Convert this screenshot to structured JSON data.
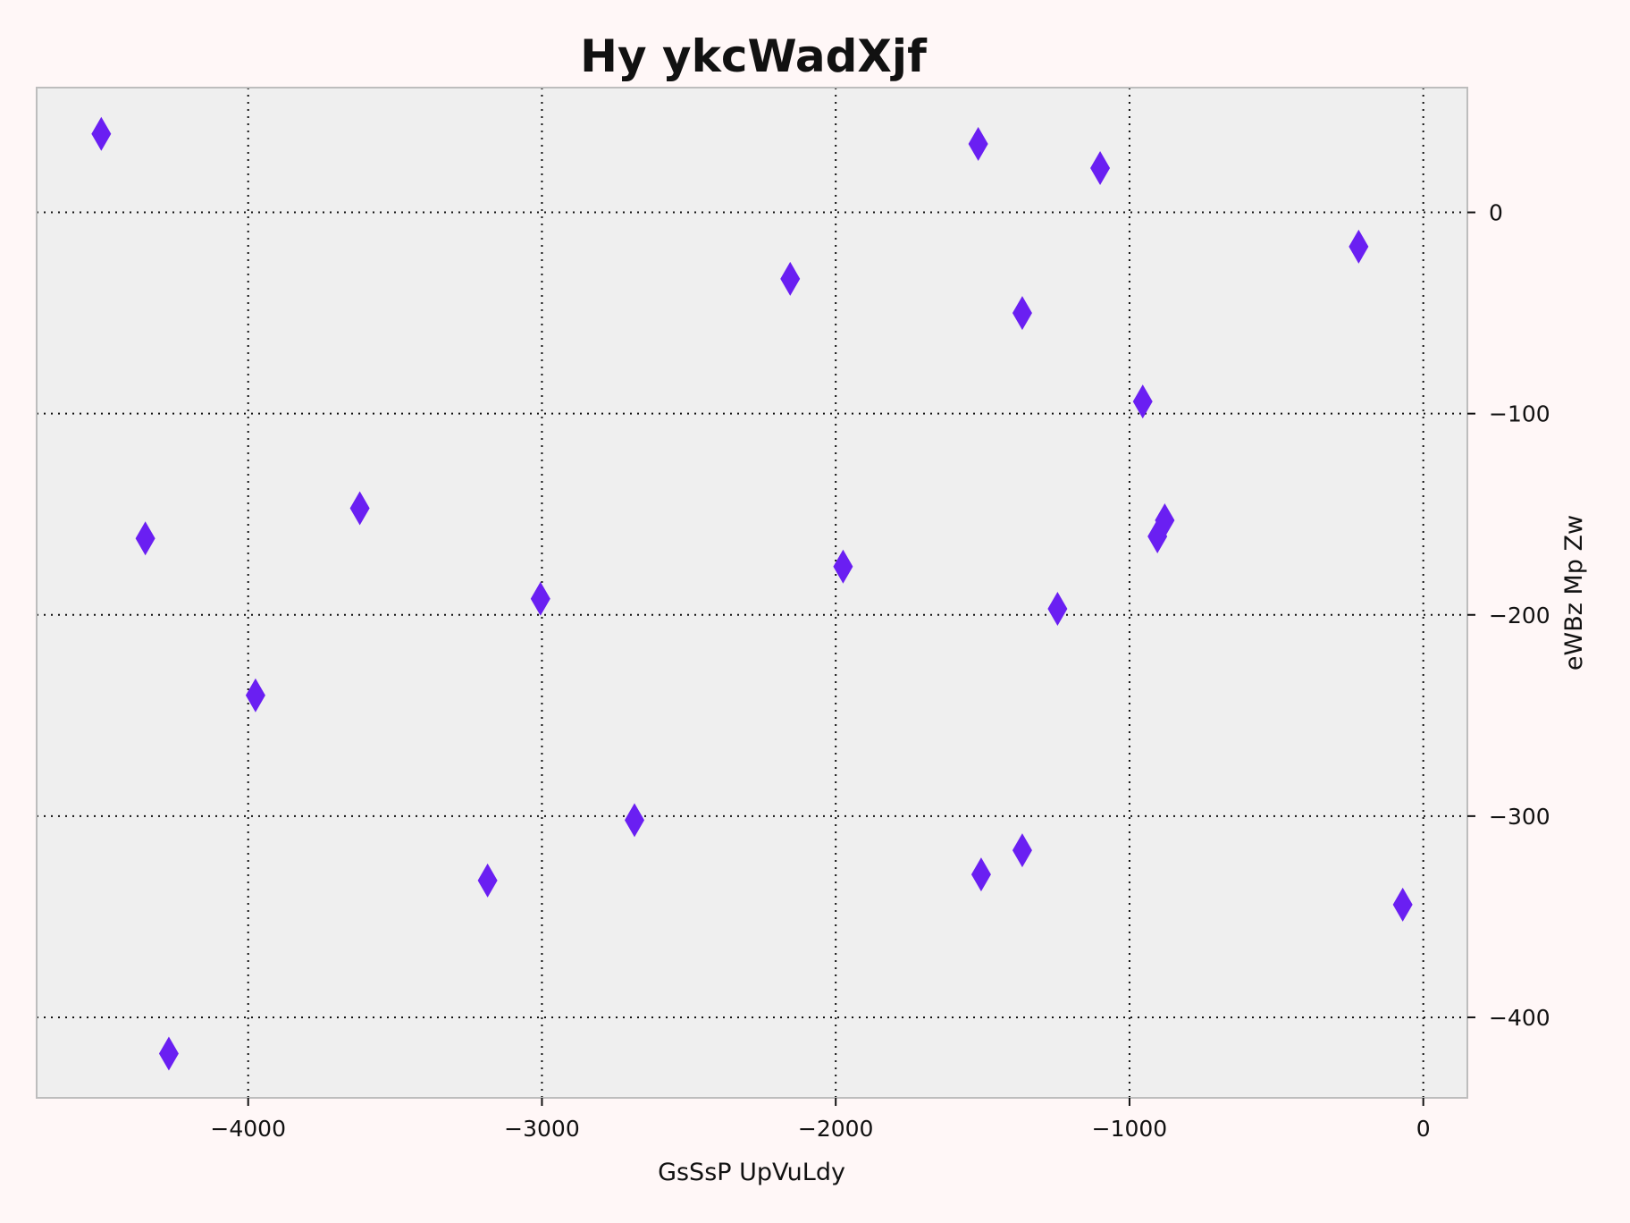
{
  "chart_data": {
    "type": "scatter",
    "title": "Hy ykcWadXjf",
    "xlabel": "GsSsP UpVuLdy",
    "ylabel": "eWBz Mp  Zw",
    "xlim": [
      -4720,
      150
    ],
    "ylim": [
      -440,
      62
    ],
    "xticks": [
      -4000,
      -3000,
      -2000,
      -1000,
      0
    ],
    "xtick_labels": [
      "−4000",
      "−3000",
      "−2000",
      "−1000",
      "0"
    ],
    "yticks": [
      0,
      -100,
      -200,
      -300,
      -400
    ],
    "ytick_labels": [
      "0",
      "−100",
      "−200",
      "−300",
      "−400"
    ],
    "y_axis_position": "right",
    "grid": true,
    "grid_style": "dotted",
    "marker": "diamond",
    "marker_color": "#6a1ff2",
    "plot_background": "#efefef",
    "page_background": "#fff7f7",
    "points": [
      {
        "x": -4500,
        "y": 39
      },
      {
        "x": -4350,
        "y": -162
      },
      {
        "x": -4270,
        "y": -418
      },
      {
        "x": -3975,
        "y": -240
      },
      {
        "x": -3620,
        "y": -147
      },
      {
        "x": -3185,
        "y": -332
      },
      {
        "x": -3005,
        "y": -192
      },
      {
        "x": -2685,
        "y": -302
      },
      {
        "x": -2155,
        "y": -33
      },
      {
        "x": -1975,
        "y": -176
      },
      {
        "x": -1515,
        "y": 34
      },
      {
        "x": -1505,
        "y": -329
      },
      {
        "x": -1365,
        "y": -50
      },
      {
        "x": -1365,
        "y": -317
      },
      {
        "x": -1245,
        "y": -197
      },
      {
        "x": -1100,
        "y": 22
      },
      {
        "x": -955,
        "y": -94
      },
      {
        "x": -905,
        "y": -161
      },
      {
        "x": -880,
        "y": -153
      },
      {
        "x": -220,
        "y": -17
      },
      {
        "x": -70,
        "y": -344
      }
    ]
  }
}
